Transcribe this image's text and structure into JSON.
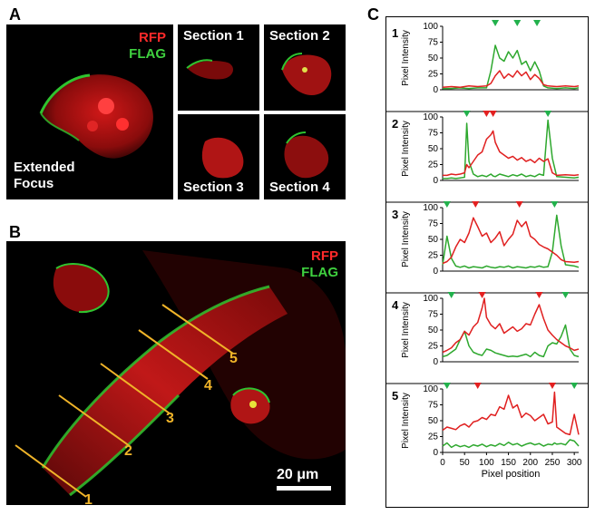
{
  "panels": {
    "a": "A",
    "b": "B",
    "c": "C"
  },
  "panel_a": {
    "legend_rfp": "RFP",
    "legend_flag": "FLAG",
    "main_label_line1": "Extended",
    "main_label_line2": "Focus",
    "sections": [
      "Section 1",
      "Section 2",
      "Section 3",
      "Section 4"
    ]
  },
  "panel_b": {
    "legend_rfp": "RFP",
    "legend_flag": "FLAG",
    "line_labels": [
      "1",
      "2",
      "3",
      "4",
      "5"
    ],
    "scale_bar": "20 μm"
  },
  "colors": {
    "rfp": "#e02020",
    "flag": "#2ea82e",
    "marker_green": "#22b14c",
    "marker_red": "#e32020",
    "line_yellow": "#f0b429"
  },
  "chart_data": [
    {
      "type": "line",
      "panel": "1",
      "ylabel": "Pixel Intensity",
      "xlabel": "",
      "xlim": [
        0,
        310
      ],
      "ylim": [
        0,
        100
      ],
      "yticks": [
        0,
        25,
        50,
        75,
        100
      ],
      "series": [
        {
          "color": "red",
          "x": [
            0,
            20,
            40,
            60,
            80,
            100,
            110,
            120,
            130,
            140,
            150,
            160,
            170,
            180,
            190,
            200,
            210,
            220,
            230,
            240,
            260,
            280,
            300,
            310
          ],
          "values": [
            4,
            5,
            4,
            6,
            5,
            6,
            10,
            22,
            30,
            18,
            25,
            20,
            30,
            22,
            28,
            16,
            24,
            18,
            8,
            6,
            5,
            6,
            5,
            6
          ]
        },
        {
          "color": "green",
          "x": [
            0,
            20,
            40,
            60,
            80,
            100,
            110,
            120,
            130,
            140,
            150,
            160,
            170,
            180,
            190,
            200,
            210,
            220,
            230,
            240,
            260,
            280,
            300,
            310
          ],
          "values": [
            2,
            2,
            3,
            2,
            3,
            3,
            30,
            70,
            50,
            45,
            60,
            50,
            62,
            40,
            45,
            30,
            44,
            30,
            6,
            3,
            2,
            3,
            2,
            3
          ]
        }
      ],
      "markers": [
        {
          "color": "green",
          "x": 120
        },
        {
          "color": "green",
          "x": 170
        },
        {
          "color": "green",
          "x": 215
        }
      ]
    },
    {
      "type": "line",
      "panel": "2",
      "ylabel": "Pixel Intensity",
      "xlabel": "",
      "xlim": [
        0,
        310
      ],
      "ylim": [
        0,
        100
      ],
      "yticks": [
        0,
        25,
        50,
        75,
        100
      ],
      "series": [
        {
          "color": "red",
          "x": [
            0,
            10,
            20,
            30,
            40,
            50,
            55,
            60,
            70,
            80,
            90,
            100,
            110,
            115,
            120,
            130,
            140,
            150,
            160,
            170,
            180,
            190,
            200,
            210,
            220,
            230,
            240,
            250,
            260,
            280,
            300,
            310
          ],
          "values": [
            8,
            8,
            10,
            9,
            10,
            12,
            25,
            20,
            30,
            40,
            45,
            65,
            72,
            78,
            60,
            45,
            40,
            35,
            38,
            32,
            36,
            30,
            33,
            28,
            35,
            30,
            34,
            12,
            8,
            9,
            8,
            9
          ]
        },
        {
          "color": "green",
          "x": [
            0,
            10,
            20,
            30,
            40,
            50,
            55,
            60,
            70,
            80,
            90,
            100,
            110,
            115,
            120,
            130,
            140,
            150,
            160,
            170,
            180,
            190,
            200,
            210,
            220,
            230,
            240,
            250,
            260,
            280,
            300,
            310
          ],
          "values": [
            3,
            3,
            4,
            3,
            4,
            5,
            90,
            30,
            10,
            6,
            8,
            6,
            10,
            7,
            6,
            10,
            8,
            6,
            9,
            7,
            10,
            6,
            8,
            6,
            10,
            8,
            95,
            35,
            6,
            5,
            4,
            5
          ]
        }
      ],
      "markers": [
        {
          "color": "green",
          "x": 55
        },
        {
          "color": "red",
          "x": 100
        },
        {
          "color": "red",
          "x": 115
        },
        {
          "color": "green",
          "x": 240
        }
      ]
    },
    {
      "type": "line",
      "panel": "3",
      "ylabel": "Pixel Intensity",
      "xlabel": "",
      "xlim": [
        0,
        310
      ],
      "ylim": [
        0,
        100
      ],
      "yticks": [
        0,
        25,
        50,
        75,
        100
      ],
      "series": [
        {
          "color": "red",
          "x": [
            0,
            10,
            20,
            30,
            40,
            50,
            60,
            70,
            80,
            90,
            100,
            110,
            120,
            130,
            140,
            150,
            160,
            170,
            180,
            190,
            200,
            210,
            220,
            230,
            240,
            250,
            260,
            270,
            280,
            300,
            310
          ],
          "values": [
            12,
            15,
            22,
            38,
            50,
            45,
            60,
            84,
            70,
            55,
            60,
            45,
            52,
            62,
            40,
            50,
            58,
            80,
            70,
            78,
            55,
            50,
            42,
            38,
            35,
            30,
            25,
            18,
            15,
            14,
            15
          ]
        },
        {
          "color": "green",
          "x": [
            0,
            10,
            20,
            30,
            40,
            50,
            60,
            70,
            80,
            90,
            100,
            110,
            120,
            130,
            140,
            150,
            160,
            170,
            180,
            190,
            200,
            210,
            220,
            230,
            240,
            250,
            260,
            270,
            280,
            300,
            310
          ],
          "values": [
            10,
            55,
            20,
            8,
            6,
            8,
            5,
            7,
            6,
            5,
            8,
            6,
            5,
            7,
            6,
            8,
            5,
            7,
            6,
            5,
            7,
            6,
            8,
            6,
            7,
            30,
            88,
            40,
            10,
            8,
            6
          ]
        }
      ],
      "markers": [
        {
          "color": "green",
          "x": 10
        },
        {
          "color": "red",
          "x": 75
        },
        {
          "color": "red",
          "x": 175
        },
        {
          "color": "green",
          "x": 255
        }
      ]
    },
    {
      "type": "line",
      "panel": "4",
      "ylabel": "Pixel Intensity",
      "xlabel": "",
      "xlim": [
        0,
        310
      ],
      "ylim": [
        0,
        100
      ],
      "yticks": [
        0,
        25,
        50,
        75,
        100
      ],
      "series": [
        {
          "color": "red",
          "x": [
            0,
            10,
            20,
            30,
            40,
            50,
            60,
            70,
            80,
            90,
            95,
            100,
            110,
            120,
            130,
            140,
            150,
            160,
            170,
            180,
            190,
            200,
            210,
            220,
            230,
            240,
            250,
            260,
            270,
            280,
            290,
            300,
            310
          ],
          "values": [
            15,
            18,
            22,
            30,
            35,
            48,
            42,
            55,
            62,
            85,
            100,
            70,
            58,
            52,
            60,
            45,
            50,
            55,
            48,
            52,
            60,
            58,
            75,
            90,
            68,
            50,
            42,
            35,
            30,
            25,
            22,
            18,
            20
          ]
        },
        {
          "color": "green",
          "x": [
            0,
            10,
            20,
            30,
            40,
            50,
            60,
            70,
            80,
            90,
            95,
            100,
            110,
            120,
            130,
            140,
            150,
            160,
            170,
            180,
            190,
            200,
            210,
            220,
            230,
            240,
            250,
            260,
            270,
            280,
            290,
            300,
            310
          ],
          "values": [
            8,
            10,
            15,
            20,
            35,
            48,
            25,
            15,
            12,
            10,
            15,
            20,
            18,
            14,
            12,
            10,
            8,
            9,
            8,
            10,
            12,
            8,
            15,
            10,
            8,
            25,
            30,
            28,
            40,
            58,
            20,
            10,
            8
          ]
        }
      ],
      "markers": [
        {
          "color": "green",
          "x": 20
        },
        {
          "color": "red",
          "x": 90
        },
        {
          "color": "red",
          "x": 220
        },
        {
          "color": "green",
          "x": 280
        }
      ]
    },
    {
      "type": "line",
      "panel": "5",
      "ylabel": "Pixel Intensity",
      "xlabel": "Pixel position",
      "xlim": [
        0,
        310
      ],
      "ylim": [
        0,
        100
      ],
      "yticks": [
        0,
        25,
        50,
        75,
        100
      ],
      "xticks": [
        0,
        50,
        100,
        150,
        200,
        250,
        300
      ],
      "series": [
        {
          "color": "red",
          "x": [
            0,
            10,
            20,
            30,
            40,
            50,
            60,
            70,
            80,
            90,
            100,
            110,
            120,
            130,
            140,
            150,
            160,
            170,
            180,
            190,
            200,
            210,
            220,
            230,
            240,
            250,
            255,
            260,
            270,
            280,
            290,
            300,
            310
          ],
          "values": [
            35,
            40,
            38,
            36,
            42,
            45,
            40,
            48,
            50,
            55,
            52,
            60,
            58,
            72,
            68,
            90,
            70,
            75,
            55,
            62,
            58,
            50,
            55,
            60,
            45,
            48,
            95,
            40,
            35,
            30,
            28,
            60,
            28
          ]
        },
        {
          "color": "green",
          "x": [
            0,
            10,
            20,
            30,
            40,
            50,
            60,
            70,
            80,
            90,
            100,
            110,
            120,
            130,
            140,
            150,
            160,
            170,
            180,
            190,
            200,
            210,
            220,
            230,
            240,
            250,
            255,
            260,
            270,
            280,
            290,
            300,
            310
          ],
          "values": [
            10,
            15,
            8,
            12,
            9,
            11,
            8,
            12,
            10,
            13,
            9,
            12,
            10,
            14,
            11,
            16,
            12,
            14,
            10,
            13,
            15,
            12,
            14,
            10,
            13,
            12,
            15,
            13,
            14,
            12,
            20,
            18,
            10
          ]
        }
      ],
      "markers": [
        {
          "color": "green",
          "x": 10
        },
        {
          "color": "red",
          "x": 80
        },
        {
          "color": "red",
          "x": 250
        },
        {
          "color": "green",
          "x": 300
        }
      ]
    }
  ]
}
